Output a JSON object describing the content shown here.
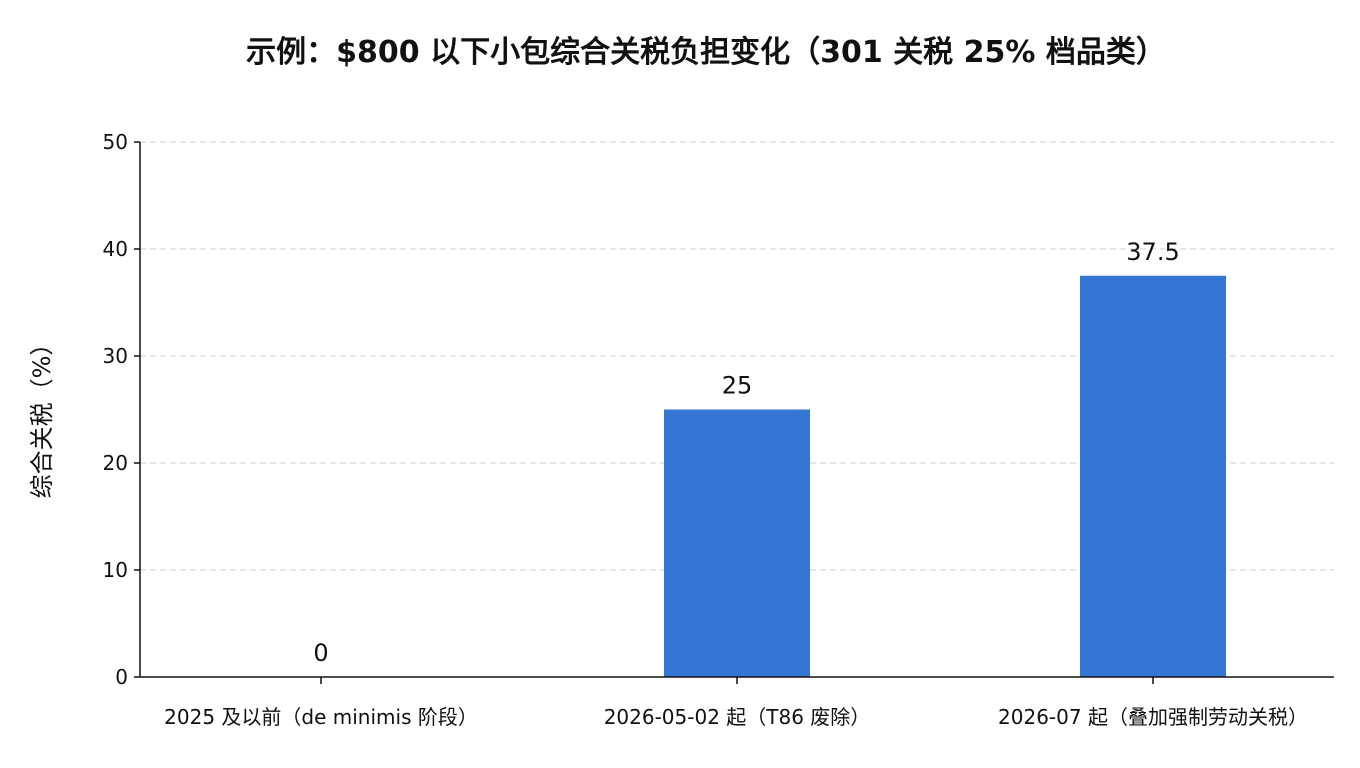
{
  "chart_data": {
    "type": "bar",
    "title": "示例：$800 以下小包综合关税负担变化（301 关税 25% 档品类）",
    "xlabel": "",
    "ylabel": "综合关税（%）",
    "categories": [
      "2025 及以前（de minimis 阶段）",
      "2026-05-02 起（T86 废除）",
      "2026-07 起（叠加强制劳动关税）"
    ],
    "values": [
      0,
      25,
      37.5
    ],
    "value_labels": [
      "0",
      "25",
      "37.5"
    ],
    "ylim": [
      0,
      50
    ],
    "yticks": [
      0,
      10,
      20,
      30,
      40,
      50
    ],
    "ytick_labels": [
      "0",
      "10",
      "20",
      "30",
      "40",
      "50"
    ],
    "grid": "horizontal dashed",
    "bar_color": "#3575d3",
    "grid_color": "#cccccc",
    "axis_color": "#111111"
  }
}
